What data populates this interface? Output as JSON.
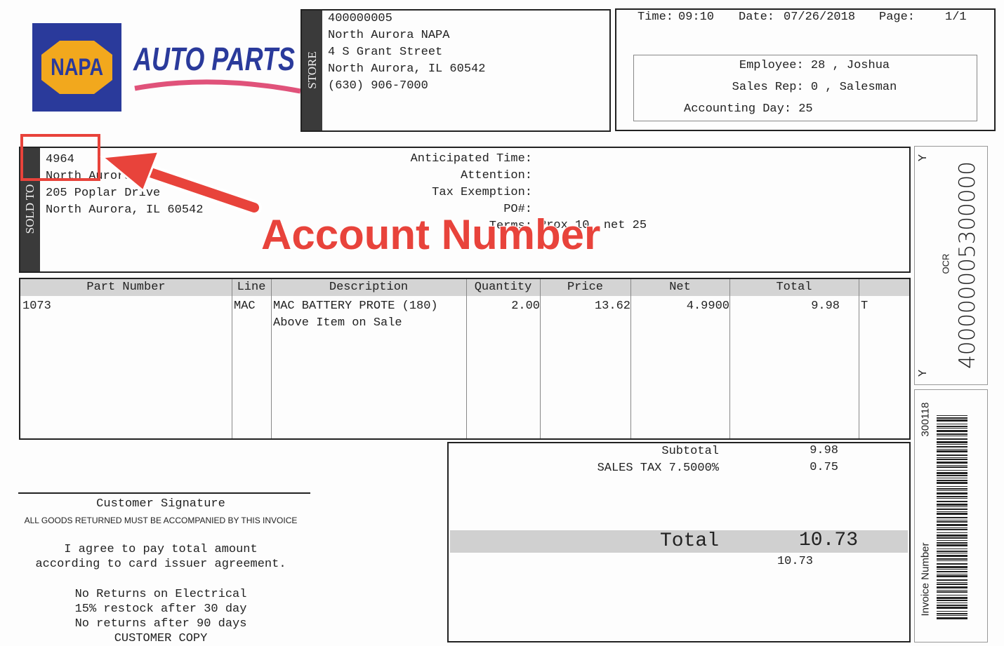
{
  "logo": {
    "brand": "NAPA",
    "tagline": "AUTO PARTS"
  },
  "store": {
    "label": "STORE",
    "lines": [
      "400000005",
      "North Aurora NAPA",
      "4 S Grant Street",
      "North Aurora, IL 60542",
      "(630) 906-7000"
    ]
  },
  "header": {
    "time_label": "Time:",
    "time": "09:10",
    "date_label": "Date:",
    "date": "07/26/2018",
    "page_label": "Page:",
    "page": "1/1",
    "employee": "Employee: 28 , Joshua",
    "sales_rep": "Sales Rep: 0 , Salesman",
    "accounting_day": "Accounting Day: 25"
  },
  "sold_to": {
    "label": "SOLD TO",
    "lines": [
      "4964",
      "North Aurora LLC",
      "205 Poplar Drive",
      "North Aurora, IL 60542"
    ],
    "fields": [
      "Anticipated Time:",
      "Attention:",
      "Tax Exemption:",
      "PO#:",
      "Terms:"
    ],
    "terms": "Prox 10  net 25"
  },
  "table": {
    "columns": [
      "Part Number",
      "Line",
      "Description",
      "Quantity",
      "Price",
      "Net",
      "Total"
    ],
    "rows": [
      [
        "1073",
        "MAC",
        "MAC BATTERY PROTE (180)",
        "2.00",
        "13.62",
        "4.9900",
        "9.98",
        "T"
      ]
    ],
    "note": "Above Item on Sale"
  },
  "totals": {
    "subtotal_label": "Subtotal",
    "subtotal": "9.98",
    "tax_label": "SALES TAX 7.5000%",
    "tax": "0.75",
    "total_label": "Total",
    "total": "10.73",
    "tendered": "10.73"
  },
  "signature": {
    "label": "Customer Signature",
    "notice": "ALL GOODS RETURNED MUST BE ACCOMPANIED BY THIS INVOICE",
    "agreement": [
      "I agree to pay total amount",
      "according to card issuer agreement."
    ],
    "policy": [
      "No Returns on Electrical",
      "15% restock after 30 day",
      "No returns after 90 days",
      "CUSTOMER COPY"
    ]
  },
  "side": {
    "flag_top": "Y",
    "flag_bottom": "Y",
    "ocr_label": "OCR",
    "ocr": "400000005300000",
    "invoice_number": "300118",
    "invoice_label": "Invoice Number"
  },
  "annotation": {
    "text": "Account Number"
  }
}
